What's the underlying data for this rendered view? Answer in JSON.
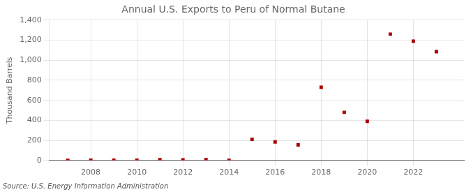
{
  "chart_data": {
    "type": "scatter",
    "title": "Annual U.S. Exports to Peru of Normal Butane",
    "ylabel": "Thousand Barrels",
    "source": "Source: U.S. Energy Information Administration",
    "x": [
      2007,
      2008,
      2009,
      2010,
      2011,
      2012,
      2013,
      2014,
      2015,
      2016,
      2017,
      2018,
      2019,
      2020,
      2021,
      2022,
      2023
    ],
    "values": [
      1,
      3,
      2,
      2,
      8,
      5,
      8,
      1,
      210,
      185,
      155,
      730,
      480,
      390,
      1260,
      1190,
      1085
    ],
    "color": "#aa0000",
    "marker": "square",
    "xlim": [
      2006.2,
      2024.2
    ],
    "xticks": [
      2008,
      2010,
      2012,
      2014,
      2016,
      2018,
      2020,
      2022
    ],
    "ylim": [
      0,
      1400
    ],
    "yticks": [
      0,
      200,
      400,
      600,
      800,
      {
        "value": 1000,
        "label": "1,000"
      },
      {
        "value": 1200,
        "label": "1,200"
      },
      {
        "value": 1400,
        "label": "1,400"
      }
    ],
    "grid": true
  }
}
